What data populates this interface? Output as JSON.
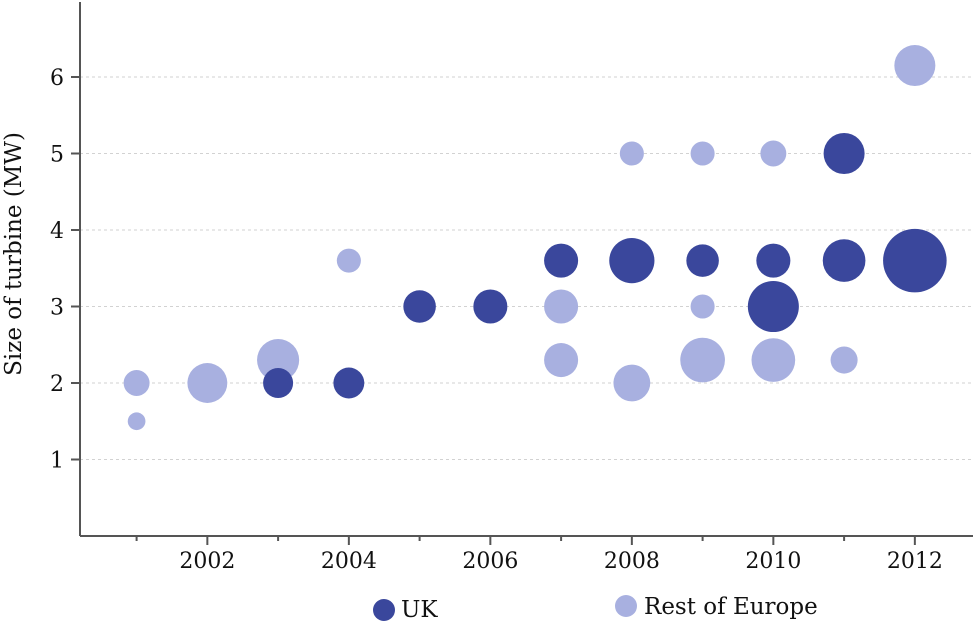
{
  "chart_data": {
    "type": "scatter",
    "title": "",
    "xlabel": "",
    "ylabel": "Size of turbine (MW)",
    "xlim": [
      2000.2,
      2012.6
    ],
    "ylim": [
      0,
      7
    ],
    "x_ticks": [
      "2002",
      "2004",
      "2006",
      "2008",
      "2010",
      "2012"
    ],
    "y_ticks": [
      "1",
      "2",
      "3",
      "4",
      "5",
      "6"
    ],
    "grid": true,
    "legend_position": "bottom",
    "series": [
      {
        "name": "UK",
        "color": "#3a479c",
        "points": [
          {
            "x": 2003,
            "y": 2,
            "size": 1
          },
          {
            "x": 2004,
            "y": 2,
            "size": 1.1
          },
          {
            "x": 2005,
            "y": 3,
            "size": 1.3
          },
          {
            "x": 2006,
            "y": 3,
            "size": 1.5
          },
          {
            "x": 2007,
            "y": 3.6,
            "size": 1.5
          },
          {
            "x": 2008,
            "y": 3.6,
            "size": 3.4
          },
          {
            "x": 2009,
            "y": 3.6,
            "size": 1.3
          },
          {
            "x": 2010,
            "y": 3.6,
            "size": 1.5
          },
          {
            "x": 2010,
            "y": 3,
            "size": 4.7
          },
          {
            "x": 2011,
            "y": 3.6,
            "size": 2.9
          },
          {
            "x": 2011,
            "y": 5,
            "size": 2.6
          },
          {
            "x": 2012,
            "y": 3.6,
            "size": 8.2
          }
        ]
      },
      {
        "name": "Rest of Europe",
        "color": "#a8b0e0",
        "points": [
          {
            "x": 2001,
            "y": 1.5,
            "size": 0.1
          },
          {
            "x": 2001,
            "y": 2,
            "size": 0.6
          },
          {
            "x": 2002,
            "y": 2,
            "size": 2.4
          },
          {
            "x": 2003,
            "y": 2.3,
            "size": 2.8
          },
          {
            "x": 2004,
            "y": 3.6,
            "size": 0.45
          },
          {
            "x": 2007,
            "y": 3,
            "size": 1.5
          },
          {
            "x": 2007,
            "y": 2.3,
            "size": 1.5
          },
          {
            "x": 2008,
            "y": 5,
            "size": 0.45
          },
          {
            "x": 2008,
            "y": 2,
            "size": 1.9
          },
          {
            "x": 2009,
            "y": 5,
            "size": 0.45
          },
          {
            "x": 2009,
            "y": 3,
            "size": 0.45
          },
          {
            "x": 2009,
            "y": 2.3,
            "size": 3.3
          },
          {
            "x": 2010,
            "y": 5,
            "size": 0.6
          },
          {
            "x": 2010,
            "y": 2.3,
            "size": 3.1
          },
          {
            "x": 2011,
            "y": 2.3,
            "size": 0.7
          },
          {
            "x": 2012,
            "y": 6.15,
            "size": 2.6
          }
        ]
      }
    ]
  }
}
